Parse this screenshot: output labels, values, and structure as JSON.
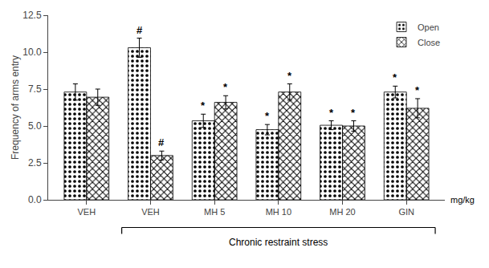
{
  "chart_data": {
    "type": "bar",
    "categories": [
      "VEH",
      "VEH",
      "MH 5",
      "MH 10",
      "MH 20",
      "GIN"
    ],
    "series": [
      {
        "name": "Open",
        "color": "#888888",
        "marker": "dots",
        "values": [
          7.3,
          10.3,
          5.35,
          4.75,
          5.05,
          7.3
        ],
        "errors": [
          0.55,
          0.65,
          0.45,
          0.35,
          0.3,
          0.4
        ],
        "annotations": [
          null,
          "#",
          "*",
          "*",
          "*",
          "*"
        ]
      },
      {
        "name": "Close",
        "color": "#888888",
        "marker": "crosses",
        "values": [
          6.95,
          3.0,
          6.6,
          7.3,
          5.0,
          6.2
        ],
        "errors": [
          0.55,
          0.3,
          0.45,
          0.55,
          0.35,
          0.65
        ],
        "annotations": [
          null,
          "#",
          "*",
          "*",
          "*",
          "*"
        ]
      }
    ],
    "ylabel": "Frequency of arms entry",
    "unit_label": "mg/kg",
    "bracket_label": "Chronic restraint stress",
    "ylim": [
      0,
      12.5
    ],
    "yticks": [
      {
        "value": 0,
        "label": "0.0"
      },
      2.5,
      {
        "value": 5,
        "label": "5.0"
      },
      7.5,
      {
        "value": 10,
        "label": "10.0"
      },
      12.5
    ],
    "legend": "upper right",
    "grid": false
  }
}
